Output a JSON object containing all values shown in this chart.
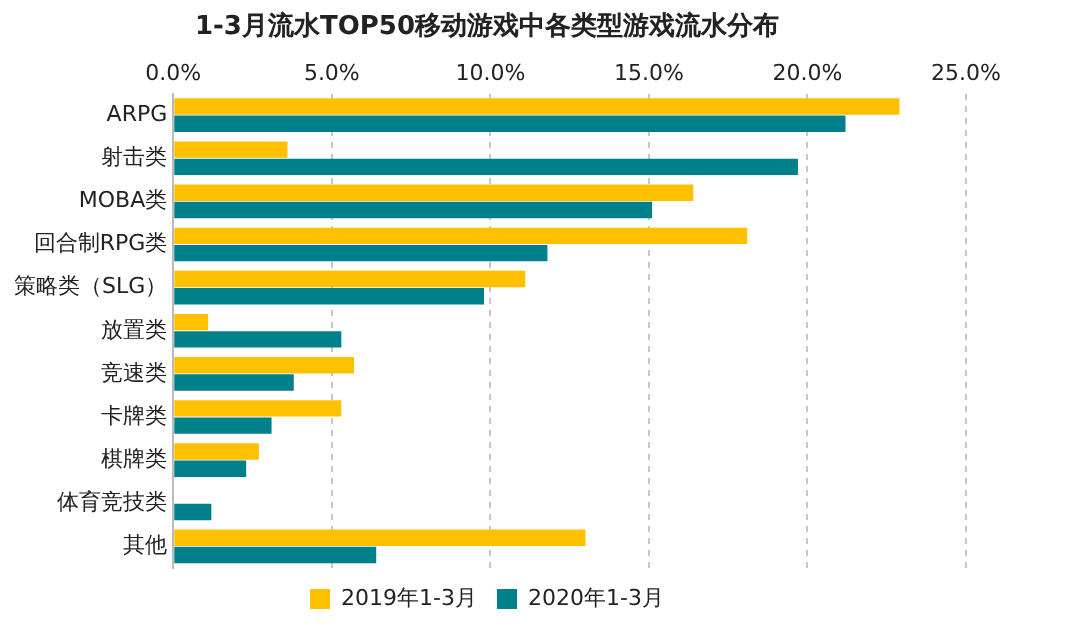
{
  "chart_data": {
    "type": "bar",
    "orientation": "horizontal",
    "title": "1-3月流水TOP50移动游戏中各类型游戏流水分布",
    "categories": [
      "ARPG",
      "射击类",
      "MOBA类",
      "回合制RPG类",
      "策略类（SLG）",
      "放置类",
      "竞速类",
      "卡牌类",
      "棋牌类",
      "体育竞技类",
      "其他"
    ],
    "series": [
      {
        "name": "2019年1-3月",
        "color": "#ffc000",
        "values": [
          22.9,
          3.6,
          16.4,
          18.1,
          11.1,
          1.1,
          5.7,
          5.3,
          2.7,
          null,
          13.0
        ]
      },
      {
        "name": "2020年1-3月",
        "color": "#00808a",
        "values": [
          21.2,
          19.7,
          15.1,
          11.8,
          9.8,
          5.3,
          3.8,
          3.1,
          2.3,
          1.2,
          6.4
        ]
      }
    ],
    "xlim": [
      0,
      25
    ],
    "xticks": [
      {
        "value": 0,
        "label": "0.0%"
      },
      {
        "value": 5,
        "label": "5.0%"
      },
      {
        "value": 10,
        "label": "10.0%"
      },
      {
        "value": 15,
        "label": "15.0%"
      },
      {
        "value": 20,
        "label": "20.0%"
      },
      {
        "value": 25,
        "label": "25.0%"
      }
    ],
    "grid": "x",
    "legend": "bottom"
  }
}
